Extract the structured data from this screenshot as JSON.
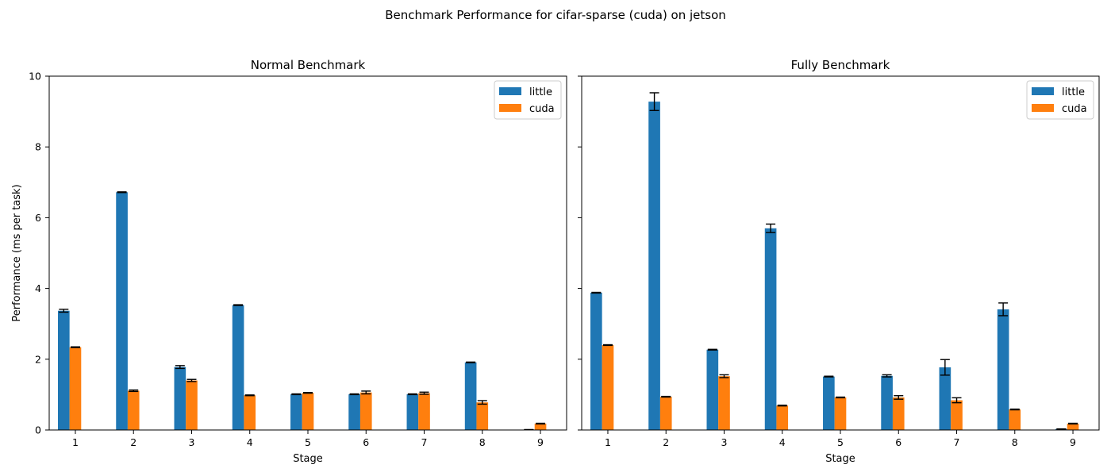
{
  "figure": {
    "suptitle": "Benchmark Performance for cifar-sparse (cuda) on jetson",
    "ylabel": "Performance (ms per task)",
    "colors": {
      "little": "#1f77b4",
      "cuda": "#ff7f0e",
      "errorbar": "#000000"
    }
  },
  "chart_data": [
    {
      "type": "bar",
      "title": "Normal Benchmark",
      "xlabel": "Stage",
      "ylabel": "Performance (ms per task)",
      "categories": [
        "1",
        "2",
        "3",
        "4",
        "5",
        "6",
        "7",
        "8",
        "9"
      ],
      "ylim": [
        0,
        10
      ],
      "yticks": [
        "0",
        "2",
        "4",
        "6",
        "8",
        "10"
      ],
      "legend_position": "top-right",
      "grid": false,
      "series": [
        {
          "name": "little",
          "values": [
            3.37,
            6.72,
            1.78,
            3.53,
            1.01,
            1.01,
            1.01,
            1.91,
            0.01
          ],
          "errors": [
            0.04,
            0.01,
            0.04,
            0.01,
            0.01,
            0.01,
            0.01,
            0.01,
            0.0
          ]
        },
        {
          "name": "cuda",
          "values": [
            2.34,
            1.11,
            1.4,
            0.98,
            1.05,
            1.06,
            1.04,
            0.78,
            0.18
          ],
          "errors": [
            0.01,
            0.02,
            0.03,
            0.01,
            0.01,
            0.04,
            0.03,
            0.05,
            0.01
          ]
        }
      ]
    },
    {
      "type": "bar",
      "title": "Fully Benchmark",
      "xlabel": "Stage",
      "categories": [
        "1",
        "2",
        "3",
        "4",
        "5",
        "6",
        "7",
        "8",
        "9"
      ],
      "ylim": [
        0,
        10
      ],
      "legend_position": "top-right",
      "grid": false,
      "series": [
        {
          "name": "little",
          "values": [
            3.88,
            9.28,
            2.27,
            5.7,
            1.51,
            1.53,
            1.77,
            3.41,
            0.03
          ],
          "errors": [
            0.01,
            0.25,
            0.01,
            0.12,
            0.01,
            0.03,
            0.22,
            0.18,
            0.0
          ]
        },
        {
          "name": "cuda",
          "values": [
            2.4,
            0.94,
            1.52,
            0.69,
            0.92,
            0.92,
            0.84,
            0.58,
            0.18
          ],
          "errors": [
            0.01,
            0.01,
            0.04,
            0.01,
            0.01,
            0.05,
            0.07,
            0.01,
            0.01
          ]
        }
      ]
    }
  ]
}
